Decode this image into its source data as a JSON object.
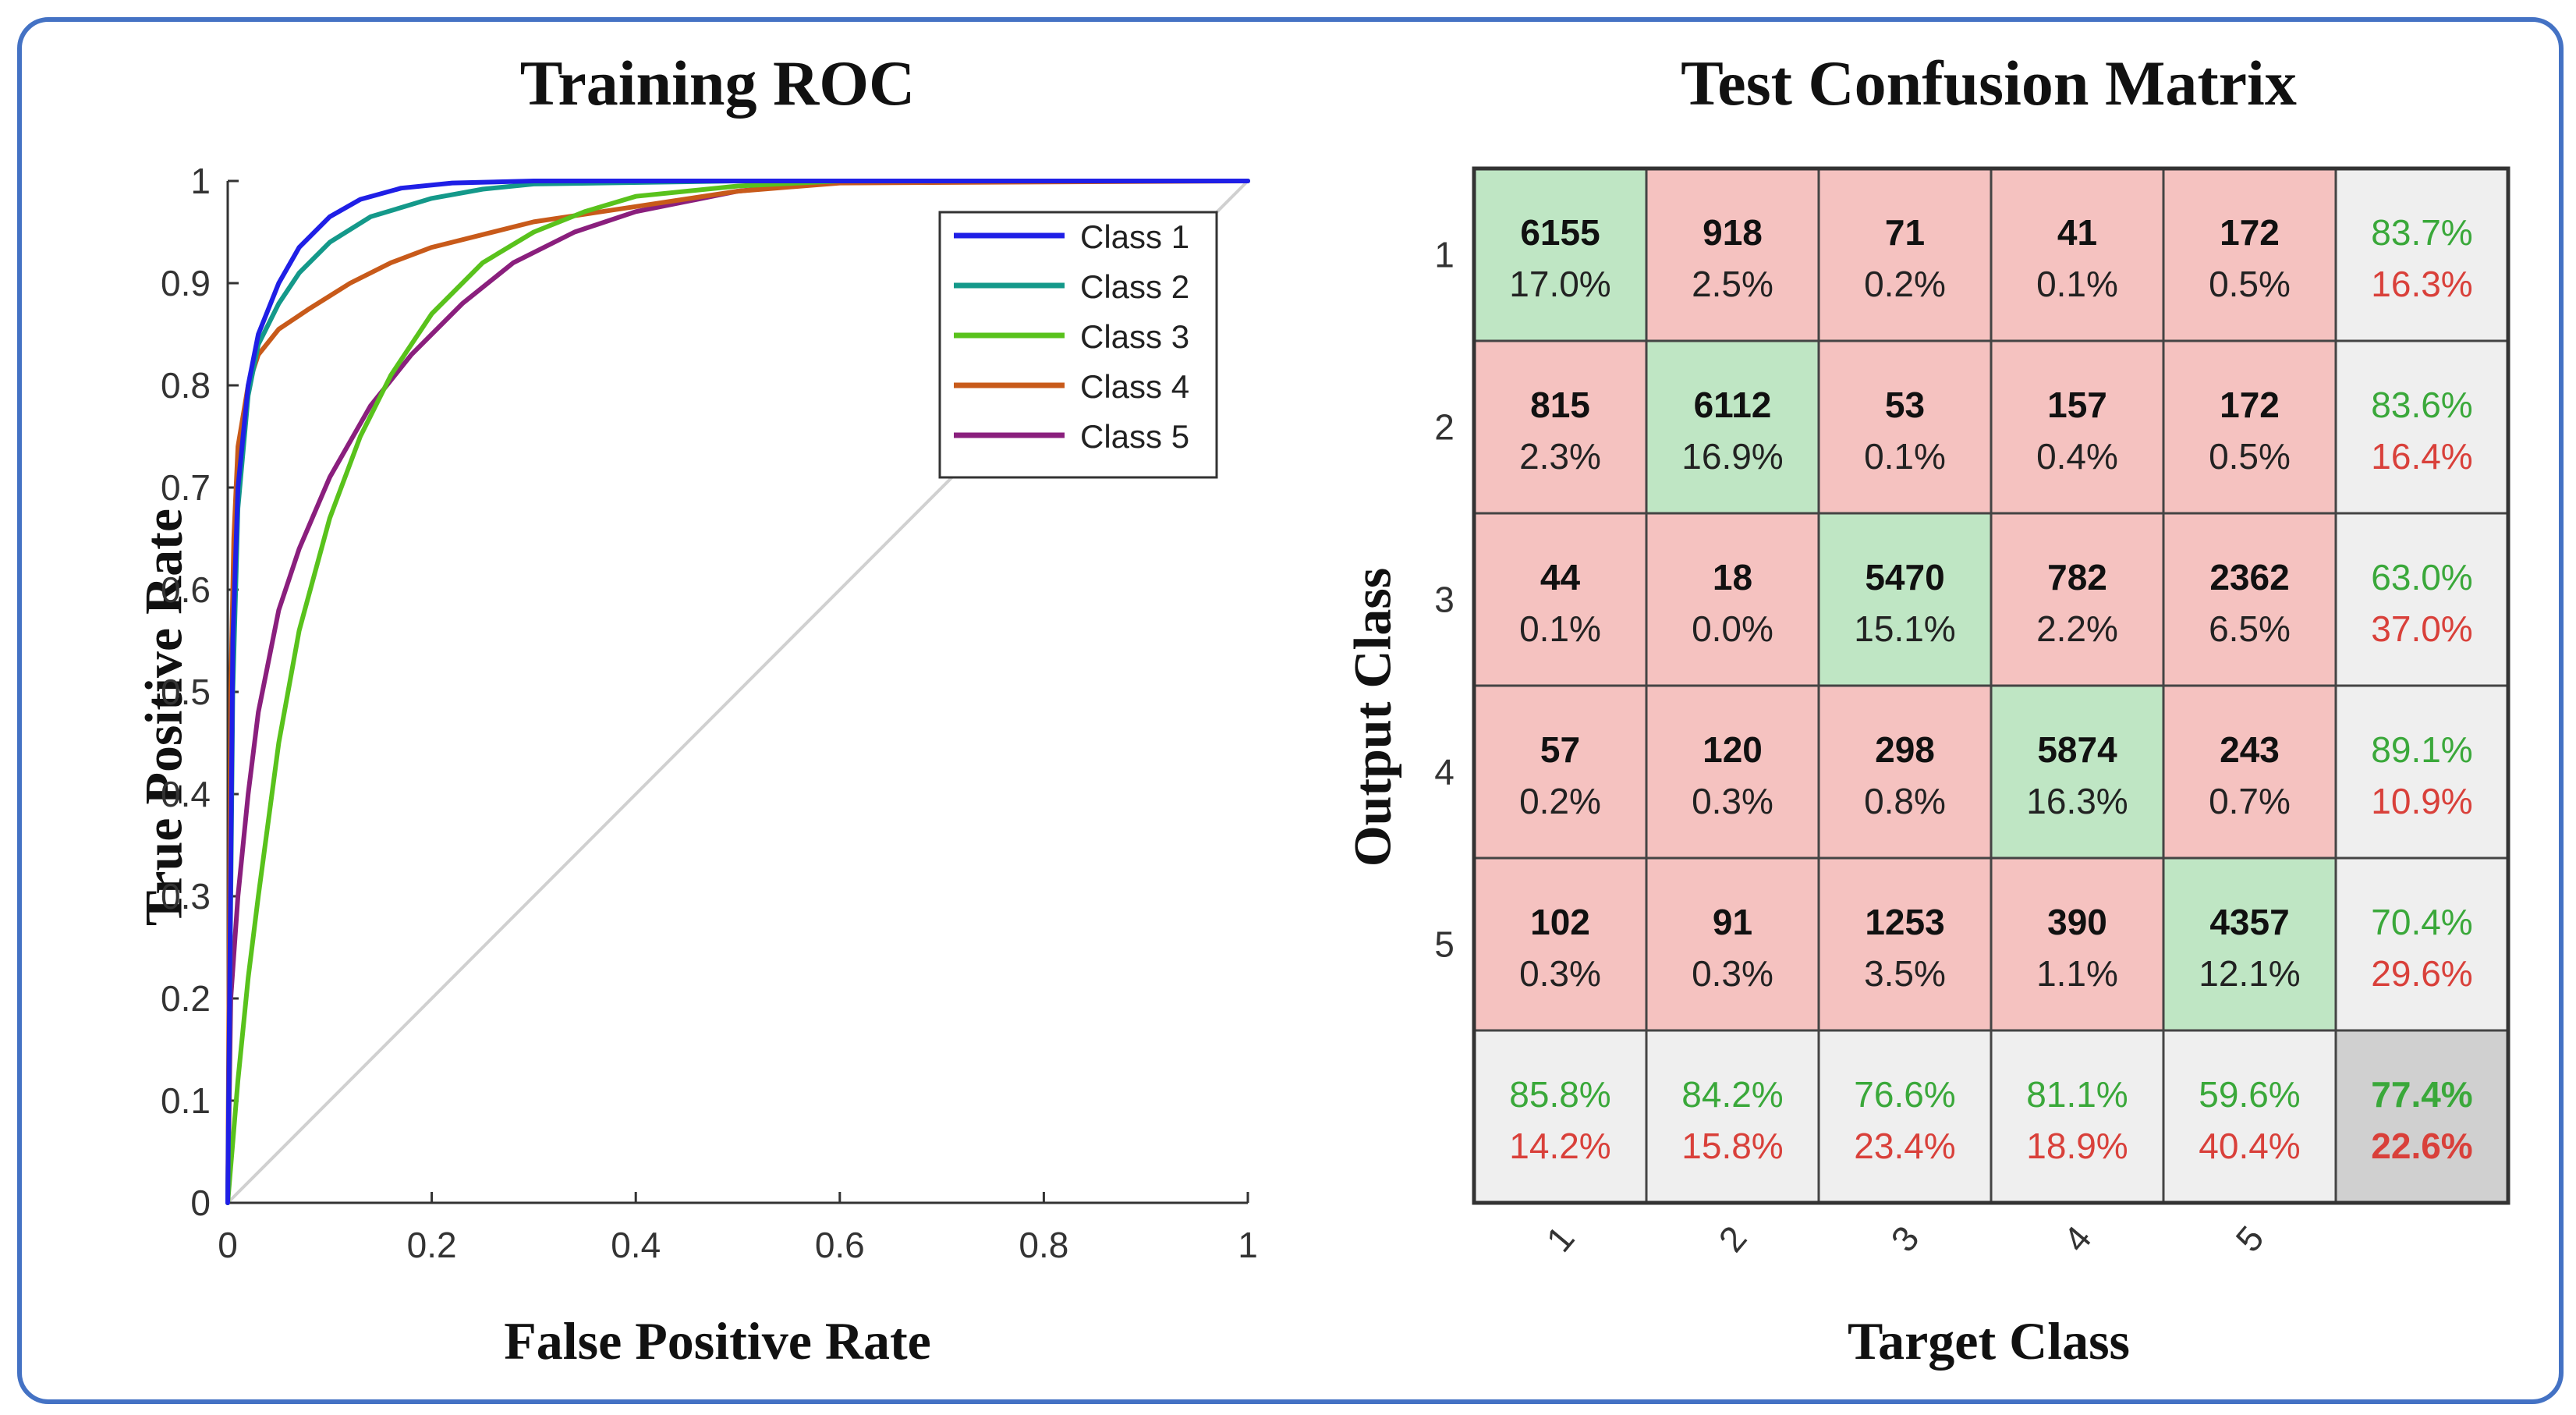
{
  "chart_data": [
    {
      "type": "line",
      "title": "Training ROC",
      "xlabel": "False Positive Rate",
      "ylabel": "True Positive Rate",
      "xlim": [
        0,
        1
      ],
      "ylim": [
        0,
        1
      ],
      "xticks": [
        "0",
        "0.2",
        "0.4",
        "0.6",
        "0.8",
        "1"
      ],
      "yticks": [
        "0",
        "0.1",
        "0.2",
        "0.3",
        "0.4",
        "0.5",
        "0.6",
        "0.7",
        "0.8",
        "0.9",
        "1"
      ],
      "legend_position": "top-right",
      "reference_line": {
        "x": [
          0,
          1
        ],
        "y": [
          0,
          1
        ],
        "color": "#d0d0d0"
      },
      "series": [
        {
          "name": "Class 1",
          "color": "#1f1fe6",
          "x": [
            0,
            0.005,
            0.01,
            0.02,
            0.03,
            0.05,
            0.07,
            0.1,
            0.13,
            0.17,
            0.22,
            0.3,
            0.5,
            1
          ],
          "y": [
            0,
            0.55,
            0.7,
            0.8,
            0.85,
            0.9,
            0.935,
            0.965,
            0.982,
            0.993,
            0.998,
            1,
            1,
            1
          ]
        },
        {
          "name": "Class 2",
          "color": "#14998a",
          "x": [
            0,
            0.005,
            0.01,
            0.02,
            0.03,
            0.05,
            0.07,
            0.1,
            0.14,
            0.2,
            0.25,
            0.3,
            0.5,
            1
          ],
          "y": [
            0,
            0.5,
            0.68,
            0.79,
            0.84,
            0.88,
            0.91,
            0.94,
            0.965,
            0.983,
            0.992,
            0.997,
            1,
            1
          ]
        },
        {
          "name": "Class 3",
          "color": "#59c21c",
          "x": [
            0,
            0.01,
            0.02,
            0.03,
            0.05,
            0.07,
            0.1,
            0.13,
            0.16,
            0.2,
            0.25,
            0.3,
            0.35,
            0.4,
            0.5,
            0.6,
            1
          ],
          "y": [
            0,
            0.12,
            0.22,
            0.3,
            0.45,
            0.56,
            0.67,
            0.75,
            0.81,
            0.87,
            0.92,
            0.95,
            0.97,
            0.985,
            0.995,
            1,
            1
          ]
        },
        {
          "name": "Class 4",
          "color": "#c85a1a",
          "x": [
            0,
            0.003,
            0.006,
            0.01,
            0.02,
            0.03,
            0.05,
            0.08,
            0.12,
            0.16,
            0.2,
            0.3,
            0.4,
            0.5,
            0.6,
            1
          ],
          "y": [
            0,
            0.5,
            0.65,
            0.74,
            0.8,
            0.83,
            0.855,
            0.875,
            0.9,
            0.92,
            0.935,
            0.96,
            0.975,
            0.99,
            0.998,
            1
          ]
        },
        {
          "name": "Class 5",
          "color": "#8a1f7d",
          "x": [
            0,
            0.003,
            0.01,
            0.02,
            0.03,
            0.05,
            0.07,
            0.1,
            0.14,
            0.18,
            0.23,
            0.28,
            0.34,
            0.4,
            0.5,
            0.6,
            1
          ],
          "y": [
            0,
            0.2,
            0.3,
            0.4,
            0.48,
            0.58,
            0.64,
            0.71,
            0.78,
            0.83,
            0.88,
            0.92,
            0.95,
            0.97,
            0.99,
            1,
            1
          ]
        }
      ]
    },
    {
      "type": "heatmap",
      "title": "Test Confusion Matrix",
      "xlabel": "Target Class",
      "ylabel": "Output Class",
      "row_labels": [
        "1",
        "2",
        "3",
        "4",
        "5"
      ],
      "col_labels": [
        "1",
        "2",
        "3",
        "4",
        "5"
      ],
      "counts": [
        [
          6155,
          918,
          71,
          41,
          172
        ],
        [
          815,
          6112,
          53,
          157,
          172
        ],
        [
          44,
          18,
          5470,
          782,
          2362
        ],
        [
          57,
          120,
          298,
          5874,
          243
        ],
        [
          102,
          91,
          1253,
          390,
          4357
        ]
      ],
      "percents": [
        [
          "17.0%",
          "2.5%",
          "0.2%",
          "0.1%",
          "0.5%"
        ],
        [
          "2.3%",
          "16.9%",
          "0.1%",
          "0.4%",
          "0.5%"
        ],
        [
          "0.1%",
          "0.0%",
          "15.1%",
          "2.2%",
          "6.5%"
        ],
        [
          "0.2%",
          "0.3%",
          "0.8%",
          "16.3%",
          "0.7%"
        ],
        [
          "0.3%",
          "0.3%",
          "3.5%",
          "1.1%",
          "12.1%"
        ]
      ],
      "row_summary": [
        [
          "83.7%",
          "16.3%"
        ],
        [
          "83.6%",
          "16.4%"
        ],
        [
          "63.0%",
          "37.0%"
        ],
        [
          "89.1%",
          "10.9%"
        ],
        [
          "70.4%",
          "29.6%"
        ]
      ],
      "col_summary": [
        [
          "85.8%",
          "14.2%"
        ],
        [
          "84.2%",
          "15.8%"
        ],
        [
          "76.6%",
          "23.4%"
        ],
        [
          "81.1%",
          "18.9%"
        ],
        [
          "59.6%",
          "40.4%"
        ]
      ],
      "overall": [
        "77.4%",
        "22.6%"
      ],
      "colors": {
        "correct": "#bfe6c4",
        "incorrect": "#f5c2c0",
        "summary": "#efefef",
        "overall": "#d0d0d0",
        "good_text": "#3aa83a",
        "bad_text": "#d9403a"
      }
    }
  ]
}
